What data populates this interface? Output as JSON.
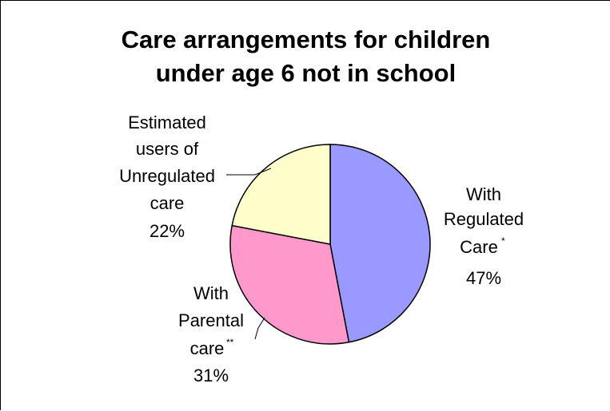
{
  "chart_data": {
    "type": "pie",
    "title_lines": [
      "Care arrangements for children",
      "under age 6 not in school"
    ],
    "slices": [
      {
        "label_lines": [
          "With",
          "Regulated",
          "Care"
        ],
        "marker": "*",
        "value": 47,
        "value_label": "47%",
        "color": "#9999ff"
      },
      {
        "label_lines": [
          "With",
          "Parental",
          "care"
        ],
        "marker": "**",
        "value": 31,
        "value_label": "31%",
        "color": "#ff99cc"
      },
      {
        "label_lines": [
          "Estimated",
          "users of",
          "Unregulated",
          "care"
        ],
        "marker": "",
        "value": 22,
        "value_label": "22%",
        "color": "#ffffcc"
      }
    ],
    "start_angle_deg": 0,
    "direction": "clockwise",
    "legend": "none"
  }
}
